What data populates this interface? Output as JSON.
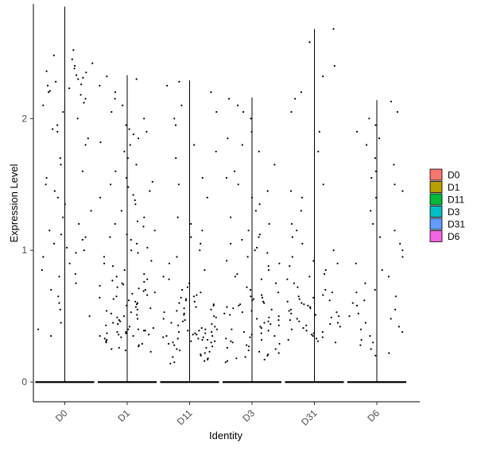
{
  "chart_data": {
    "type": "scatter",
    "subtype": "violin-jitter",
    "title": "",
    "xlabel": "Identity",
    "ylabel": "Expression Level",
    "ylim": [
      -0.15,
      2.87
    ],
    "yticks": [
      "0",
      "1",
      "2"
    ],
    "grid": false,
    "legend_position": "right",
    "categories": [
      "D0",
      "D1",
      "D11",
      "D3",
      "D31",
      "D6"
    ],
    "series": [
      {
        "name": "D0",
        "color": "#F8766D",
        "max": 2.85,
        "nonzero": [
          2.52,
          2.48,
          2.45,
          2.42,
          2.4,
          2.38,
          2.36,
          2.35,
          2.33,
          2.31,
          2.3,
          2.28,
          2.26,
          2.25,
          2.23,
          2.21,
          2.2,
          2.18,
          2.15,
          2.12,
          2.1,
          2.05,
          2.0,
          1.95,
          1.92,
          1.9,
          1.85,
          1.8,
          1.7,
          1.65,
          1.6,
          1.55,
          1.5,
          1.45,
          1.4,
          1.35,
          1.3,
          1.25,
          1.2,
          1.15,
          1.12,
          1.1,
          1.08,
          1.05,
          1.02,
          1.0,
          0.98,
          0.95,
          0.9,
          0.85,
          0.82,
          0.8,
          0.75,
          0.7,
          0.65,
          0.6,
          0.55,
          0.5,
          0.45,
          0.4,
          0.35
        ]
      },
      {
        "name": "D1",
        "color": "#B79F00",
        "max": 2.33,
        "nonzero": [
          2.32,
          2.3,
          2.25,
          2.2,
          2.15,
          2.1,
          2.05,
          2.0,
          1.95,
          1.92,
          1.9,
          1.88,
          1.85,
          1.82,
          1.8,
          1.75,
          1.7,
          1.65,
          1.6,
          1.55,
          1.52,
          1.5,
          1.48,
          1.45,
          1.42,
          1.4,
          1.38,
          1.35,
          1.3,
          1.25,
          1.22,
          1.2,
          1.18,
          1.15,
          1.12,
          1.1,
          1.08,
          1.05,
          1.02,
          1.0,
          0.98,
          0.95,
          0.92,
          0.9,
          0.88,
          0.85,
          0.82,
          0.8,
          0.78,
          0.77,
          0.76,
          0.75,
          0.74,
          0.73,
          0.72,
          0.71,
          0.7,
          0.69,
          0.68,
          0.67,
          0.66,
          0.65,
          0.64,
          0.63,
          0.62,
          0.61,
          0.6,
          0.59,
          0.58,
          0.57,
          0.56,
          0.55,
          0.54,
          0.53,
          0.52,
          0.51,
          0.5,
          0.49,
          0.48,
          0.47,
          0.46,
          0.45,
          0.44,
          0.43,
          0.42,
          0.41,
          0.4,
          0.4,
          0.39,
          0.39,
          0.38,
          0.38,
          0.37,
          0.37,
          0.36,
          0.36,
          0.35,
          0.35,
          0.34,
          0.33,
          0.32,
          0.31,
          0.3,
          0.29,
          0.28,
          0.27,
          0.26,
          0.25,
          0.24,
          0.23
        ]
      },
      {
        "name": "D11",
        "color": "#00BA38",
        "max": 2.29,
        "nonzero": [
          2.28,
          2.25,
          2.2,
          2.1,
          2.05,
          2.0,
          1.95,
          1.8,
          1.75,
          1.7,
          1.55,
          1.5,
          1.4,
          1.25,
          1.2,
          1.15,
          1.1,
          1.05,
          1.0,
          0.95,
          0.9,
          0.85,
          0.8,
          0.78,
          0.75,
          0.72,
          0.7,
          0.68,
          0.66,
          0.65,
          0.64,
          0.63,
          0.62,
          0.61,
          0.6,
          0.59,
          0.58,
          0.57,
          0.56,
          0.55,
          0.54,
          0.53,
          0.52,
          0.51,
          0.5,
          0.49,
          0.48,
          0.47,
          0.46,
          0.45,
          0.44,
          0.43,
          0.42,
          0.41,
          0.4,
          0.4,
          0.39,
          0.39,
          0.38,
          0.38,
          0.37,
          0.37,
          0.36,
          0.36,
          0.35,
          0.35,
          0.34,
          0.34,
          0.33,
          0.33,
          0.32,
          0.32,
          0.31,
          0.31,
          0.3,
          0.3,
          0.29,
          0.28,
          0.27,
          0.26,
          0.25,
          0.24,
          0.23,
          0.22,
          0.21,
          0.2,
          0.19,
          0.18,
          0.17,
          0.16,
          0.15,
          0.14
        ]
      },
      {
        "name": "D3",
        "color": "#00BFC4",
        "max": 2.16,
        "nonzero": [
          2.15,
          2.1,
          2.05,
          2.0,
          1.9,
          1.85,
          1.8,
          1.75,
          1.65,
          1.6,
          1.55,
          1.5,
          1.45,
          1.4,
          1.35,
          1.3,
          1.25,
          1.2,
          1.15,
          1.12,
          1.1,
          1.08,
          1.05,
          1.02,
          1.0,
          0.98,
          0.95,
          0.92,
          0.9,
          0.88,
          0.85,
          0.82,
          0.8,
          0.78,
          0.75,
          0.72,
          0.7,
          0.68,
          0.66,
          0.65,
          0.64,
          0.63,
          0.62,
          0.61,
          0.6,
          0.59,
          0.58,
          0.57,
          0.56,
          0.55,
          0.54,
          0.53,
          0.52,
          0.51,
          0.5,
          0.49,
          0.48,
          0.47,
          0.46,
          0.45,
          0.44,
          0.43,
          0.42,
          0.41,
          0.4,
          0.39,
          0.38,
          0.37,
          0.36,
          0.35,
          0.34,
          0.33,
          0.32,
          0.31,
          0.3,
          0.29,
          0.28,
          0.27,
          0.26,
          0.25,
          0.24,
          0.23,
          0.22,
          0.21,
          0.2,
          0.19,
          0.18,
          0.17,
          0.16,
          0.15
        ]
      },
      {
        "name": "D31",
        "color": "#619CFF",
        "max": 2.68,
        "nonzero": [
          2.68,
          2.58,
          2.4,
          2.32,
          2.2,
          2.15,
          2.05,
          1.9,
          1.75,
          1.5,
          1.45,
          1.4,
          1.3,
          1.2,
          1.15,
          1.1,
          1.05,
          1.0,
          0.95,
          0.92,
          0.9,
          0.88,
          0.85,
          0.82,
          0.8,
          0.78,
          0.75,
          0.72,
          0.7,
          0.68,
          0.66,
          0.65,
          0.64,
          0.63,
          0.62,
          0.61,
          0.6,
          0.59,
          0.58,
          0.57,
          0.56,
          0.55,
          0.54,
          0.53,
          0.52,
          0.51,
          0.5,
          0.49,
          0.48,
          0.47,
          0.46,
          0.45,
          0.44,
          0.43,
          0.42,
          0.41,
          0.4,
          0.39,
          0.38,
          0.37,
          0.36,
          0.35,
          0.34,
          0.33,
          0.32,
          0.31,
          0.3
        ]
      },
      {
        "name": "D6",
        "color": "#F564E3",
        "max": 2.14,
        "nonzero": [
          2.13,
          2.05,
          2.0,
          1.95,
          1.9,
          1.85,
          1.8,
          1.7,
          1.65,
          1.6,
          1.55,
          1.5,
          1.45,
          1.4,
          1.3,
          1.2,
          1.15,
          1.1,
          1.05,
          1.0,
          0.95,
          0.9,
          0.85,
          0.8,
          0.75,
          0.7,
          0.68,
          0.65,
          0.62,
          0.6,
          0.58,
          0.55,
          0.52,
          0.5,
          0.48,
          0.45,
          0.42,
          0.4,
          0.38,
          0.35,
          0.32,
          0.3,
          0.28,
          0.25,
          0.22,
          0.2
        ]
      }
    ]
  }
}
